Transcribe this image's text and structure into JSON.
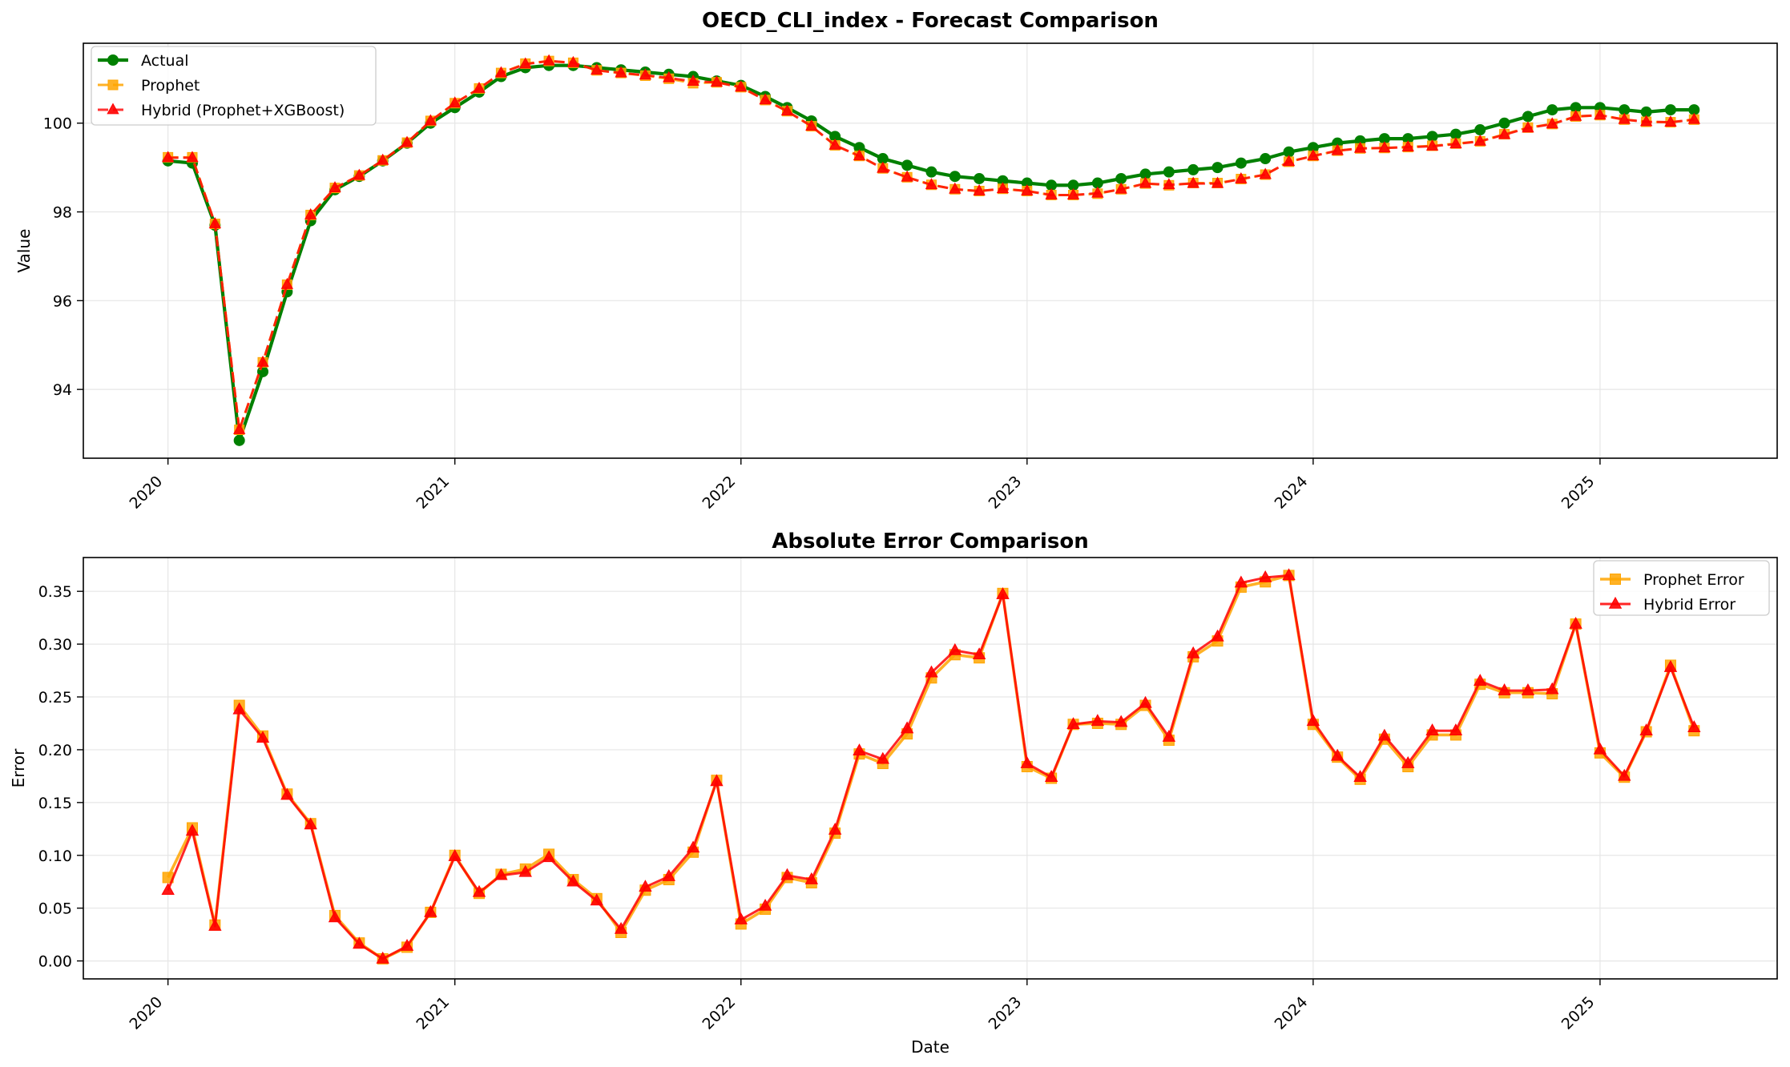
{
  "colors": {
    "actual": "#008000",
    "prophet": "#FFA500",
    "hybrid": "#FF0000",
    "grid": "#e6e6e6",
    "frame": "#000000"
  },
  "chart_data": [
    {
      "type": "line",
      "title": "OECD_CLI_index - Forecast Comparison",
      "xlabel": "",
      "ylabel": "Value",
      "x_axis": "date",
      "xlim": [
        "2019-09-15",
        "2025-08-15"
      ],
      "ylim": [
        92.45,
        101.8
      ],
      "x_ticks": [
        "2020",
        "2021",
        "2022",
        "2023",
        "2024",
        "2025"
      ],
      "y_ticks": [
        94,
        96,
        98,
        100
      ],
      "grid": true,
      "legend": "upper left",
      "x": [
        "2020-01",
        "2020-02",
        "2020-03",
        "2020-04",
        "2020-05",
        "2020-06",
        "2020-07",
        "2020-08",
        "2020-09",
        "2020-10",
        "2020-11",
        "2020-12",
        "2021-01",
        "2021-02",
        "2021-03",
        "2021-04",
        "2021-05",
        "2021-06",
        "2021-07",
        "2021-08",
        "2021-09",
        "2021-10",
        "2021-11",
        "2021-12",
        "2022-01",
        "2022-02",
        "2022-03",
        "2022-04",
        "2022-05",
        "2022-06",
        "2022-07",
        "2022-08",
        "2022-09",
        "2022-10",
        "2022-11",
        "2022-12",
        "2023-01",
        "2023-02",
        "2023-03",
        "2023-04",
        "2023-05",
        "2023-06",
        "2023-07",
        "2023-08",
        "2023-09",
        "2023-10",
        "2023-11",
        "2023-12",
        "2024-01",
        "2024-02",
        "2024-03",
        "2024-04",
        "2024-05",
        "2024-06",
        "2024-07",
        "2024-08",
        "2024-09",
        "2024-10",
        "2024-11",
        "2024-12",
        "2025-01",
        "2025-02",
        "2025-03",
        "2025-04",
        "2025-05"
      ],
      "series": [
        {
          "name": "Actual",
          "color": "#008000",
          "marker": "circle",
          "style": "solid",
          "values": [
            99.15,
            99.1,
            97.7,
            92.85,
            94.4,
            96.2,
            97.8,
            98.5,
            98.8,
            99.15,
            99.55,
            100.0,
            100.35,
            100.7,
            101.05,
            101.25,
            101.3,
            101.3,
            101.25,
            101.2,
            101.15,
            101.1,
            101.05,
            100.95,
            100.85,
            100.6,
            100.35,
            100.05,
            99.7,
            99.45,
            99.2,
            99.05,
            98.9,
            98.8,
            98.75,
            98.7,
            98.65,
            98.6,
            98.6,
            98.65,
            98.75,
            98.85,
            98.9,
            98.95,
            99.0,
            99.1,
            99.2,
            99.35,
            99.45,
            99.55,
            99.6,
            99.65,
            99.65,
            99.7,
            99.75,
            99.85,
            100.0,
            100.15,
            100.3,
            100.35,
            100.35,
            100.3,
            100.25,
            100.3,
            100.3
          ]
        },
        {
          "name": "Prophet",
          "color": "#FFA500",
          "marker": "square",
          "style": "dashed",
          "values": [
            99.23,
            99.23,
            97.73,
            93.09,
            94.61,
            96.36,
            97.93,
            98.54,
            98.82,
            99.16,
            99.56,
            100.05,
            100.45,
            100.78,
            101.13,
            101.34,
            101.4,
            101.36,
            101.19,
            101.13,
            101.07,
            101.0,
            100.9,
            100.92,
            100.81,
            100.52,
            100.27,
            99.93,
            99.5,
            99.26,
            98.98,
            98.78,
            98.61,
            98.51,
            98.47,
            98.52,
            98.47,
            98.38,
            98.38,
            98.41,
            98.51,
            98.64,
            98.6,
            98.65,
            98.65,
            98.74,
            98.84,
            99.13,
            99.26,
            99.38,
            99.43,
            99.44,
            99.46,
            99.49,
            99.54,
            99.59,
            99.75,
            99.9,
            99.98,
            100.15,
            100.18,
            100.08,
            100.03,
            100.02,
            100.08
          ]
        },
        {
          "name": "Hybrid (Prophet+XGBoost)",
          "color": "#FF0000",
          "marker": "triangle",
          "style": "dashed",
          "values": [
            99.22,
            99.22,
            97.73,
            93.09,
            94.61,
            96.36,
            97.93,
            98.54,
            98.82,
            99.16,
            99.56,
            100.05,
            100.45,
            100.78,
            101.13,
            101.33,
            101.4,
            101.36,
            101.19,
            101.13,
            101.08,
            101.02,
            100.94,
            100.92,
            100.81,
            100.52,
            100.27,
            99.93,
            99.5,
            99.26,
            98.98,
            98.78,
            98.61,
            98.51,
            98.47,
            98.52,
            98.47,
            98.38,
            98.38,
            98.42,
            98.51,
            98.64,
            98.61,
            98.64,
            98.64,
            98.74,
            98.84,
            99.13,
            99.26,
            99.38,
            99.43,
            99.44,
            99.46,
            99.48,
            99.53,
            99.59,
            99.74,
            99.89,
            99.98,
            100.15,
            100.18,
            100.08,
            100.03,
            100.02,
            100.08
          ]
        }
      ]
    },
    {
      "type": "line",
      "title": "Absolute Error Comparison",
      "xlabel": "Date",
      "ylabel": "Error",
      "x_axis": "date",
      "xlim": [
        "2019-09-15",
        "2025-08-15"
      ],
      "ylim": [
        -0.017,
        0.382
      ],
      "x_ticks": [
        "2020",
        "2021",
        "2022",
        "2023",
        "2024",
        "2025"
      ],
      "y_ticks": [
        "0.00",
        "0.05",
        "0.10",
        "0.15",
        "0.20",
        "0.25",
        "0.30",
        "0.35"
      ],
      "grid": true,
      "legend": "upper right",
      "series": [
        {
          "name": "Prophet Error",
          "color": "#FFA500",
          "marker": "square",
          "style": "solid",
          "values": [
            0.079,
            0.126,
            0.034,
            0.242,
            0.213,
            0.158,
            0.13,
            0.043,
            0.017,
            0.002,
            0.013,
            0.046,
            0.1,
            0.064,
            0.082,
            0.087,
            0.101,
            0.077,
            0.059,
            0.027,
            0.067,
            0.077,
            0.103,
            0.171,
            0.035,
            0.049,
            0.079,
            0.074,
            0.121,
            0.196,
            0.187,
            0.215,
            0.268,
            0.29,
            0.287,
            0.348,
            0.184,
            0.173,
            0.224,
            0.225,
            0.224,
            0.242,
            0.209,
            0.288,
            0.303,
            0.354,
            0.359,
            0.365,
            0.224,
            0.193,
            0.172,
            0.21,
            0.184,
            0.214,
            0.214,
            0.262,
            0.254,
            0.254,
            0.253,
            0.319,
            0.197,
            0.174,
            0.217,
            0.28,
            0.218
          ]
        },
        {
          "name": "Hybrid Error",
          "color": "#FF0000",
          "marker": "triangle",
          "style": "solid",
          "values": [
            0.067,
            0.123,
            0.033,
            0.238,
            0.211,
            0.157,
            0.129,
            0.041,
            0.016,
            0.002,
            0.014,
            0.046,
            0.099,
            0.065,
            0.081,
            0.084,
            0.098,
            0.075,
            0.057,
            0.03,
            0.07,
            0.08,
            0.107,
            0.17,
            0.039,
            0.052,
            0.081,
            0.077,
            0.124,
            0.199,
            0.191,
            0.22,
            0.273,
            0.294,
            0.29,
            0.347,
            0.187,
            0.174,
            0.224,
            0.227,
            0.226,
            0.244,
            0.212,
            0.291,
            0.307,
            0.358,
            0.363,
            0.365,
            0.227,
            0.194,
            0.174,
            0.213,
            0.187,
            0.218,
            0.218,
            0.265,
            0.256,
            0.256,
            0.257,
            0.319,
            0.2,
            0.175,
            0.218,
            0.278,
            0.221
          ]
        }
      ]
    }
  ]
}
